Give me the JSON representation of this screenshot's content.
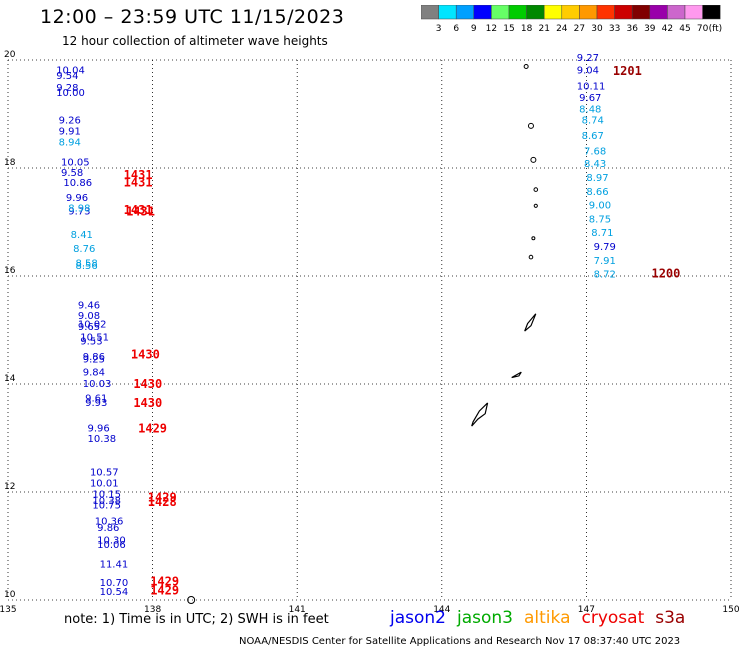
{
  "header": {
    "title": "12:00 – 23:59 UTC 11/15/2023",
    "subtitle": "12 hour collection of altimeter wave heights"
  },
  "colorbar": {
    "labels": [
      "3",
      "6",
      "9",
      "12",
      "15",
      "18",
      "21",
      "24",
      "27",
      "30",
      "33",
      "36",
      "39",
      "42",
      "45",
      "70"
    ],
    "unit": "(ft)",
    "colors": [
      "#808080",
      "#00e5ff",
      "#00a0ff",
      "#0000ff",
      "#66ff66",
      "#00cc00",
      "#008800",
      "#ffff00",
      "#ffcc00",
      "#ff9900",
      "#ff3300",
      "#cc0000",
      "#800000",
      "#9900aa",
      "#cc66cc",
      "#ff99ee",
      "#000000"
    ]
  },
  "footer": {
    "note": "note:  1) Time is in UTC;  2) SWH is in feet",
    "credit": "NOAA/NESDIS Center for Satellite Applications and Research    Nov 17 08:37:40 UTC 2023",
    "legend": [
      {
        "name": "jason2",
        "color": "#0000ee"
      },
      {
        "name": "jason3",
        "color": "#00aa00"
      },
      {
        "name": "altika",
        "color": "#ff9900"
      },
      {
        "name": "cryosat",
        "color": "#ee0000"
      },
      {
        "name": "s3a",
        "color": "#990000"
      }
    ]
  },
  "chart_data": {
    "type": "scatter",
    "title": "12:00 – 23:59 UTC 11/15/2023",
    "subtitle": "12 hour collection of altimeter wave heights",
    "xlim": [
      135,
      150
    ],
    "ylim": [
      10,
      20
    ],
    "x_ticks": [
      "135",
      "138",
      "141",
      "144",
      "147",
      "150"
    ],
    "y_ticks": [
      "10",
      "12",
      "14",
      "16",
      "18",
      "20"
    ],
    "grid": true,
    "colors": {
      "dark_blue": "#0000cc",
      "light_blue": "#00a0e0",
      "time_red": "#ee0000",
      "time_darkred": "#990000"
    },
    "points": [
      {
        "lon": 136.0,
        "lat": 19.75,
        "v": "10.04",
        "c": "#0000cc"
      },
      {
        "lon": 136.0,
        "lat": 19.65,
        "v": "9.54",
        "c": "#0000cc"
      },
      {
        "lon": 136.0,
        "lat": 19.43,
        "v": "9.28",
        "c": "#0000cc"
      },
      {
        "lon": 136.0,
        "lat": 19.33,
        "v": "10.00",
        "c": "#0000cc"
      },
      {
        "lon": 136.05,
        "lat": 18.82,
        "v": "9.26",
        "c": "#0000cc"
      },
      {
        "lon": 136.05,
        "lat": 18.62,
        "v": "9.91",
        "c": "#0000cc"
      },
      {
        "lon": 136.05,
        "lat": 18.42,
        "v": "8.94",
        "c": "#00a0e0"
      },
      {
        "lon": 136.1,
        "lat": 18.05,
        "v": "10.05",
        "c": "#0000cc"
      },
      {
        "lon": 136.1,
        "lat": 17.85,
        "v": "9.58",
        "c": "#0000cc"
      },
      {
        "lon": 136.15,
        "lat": 17.67,
        "v": "10.86",
        "c": "#0000cc"
      },
      {
        "lon": 136.2,
        "lat": 17.39,
        "v": "9.96",
        "c": "#0000cc"
      },
      {
        "lon": 136.25,
        "lat": 17.14,
        "v": "9.73",
        "c": "#0000cc"
      },
      {
        "lon": 136.25,
        "lat": 17.19,
        "v": "8.98",
        "c": "#00a0e0"
      },
      {
        "lon": 136.3,
        "lat": 16.7,
        "v": "8.41",
        "c": "#00a0e0"
      },
      {
        "lon": 136.35,
        "lat": 16.44,
        "v": "8.76",
        "c": "#00a0e0"
      },
      {
        "lon": 136.4,
        "lat": 16.18,
        "v": "8.58",
        "c": "#00a0e0"
      },
      {
        "lon": 136.4,
        "lat": 16.13,
        "v": "8.56",
        "c": "#00a0e0"
      },
      {
        "lon": 136.45,
        "lat": 15.4,
        "v": "9.46",
        "c": "#0000cc"
      },
      {
        "lon": 136.45,
        "lat": 15.2,
        "v": "9.08",
        "c": "#0000cc"
      },
      {
        "lon": 136.45,
        "lat": 15.05,
        "v": "10.02",
        "c": "#0000cc"
      },
      {
        "lon": 136.45,
        "lat": 15.0,
        "v": "9.65",
        "c": "#0000cc"
      },
      {
        "lon": 136.5,
        "lat": 14.81,
        "v": "10.51",
        "c": "#0000cc"
      },
      {
        "lon": 136.5,
        "lat": 14.73,
        "v": "9.53",
        "c": "#0000cc"
      },
      {
        "lon": 136.55,
        "lat": 14.44,
        "v": "9.86",
        "c": "#0000cc"
      },
      {
        "lon": 136.55,
        "lat": 14.4,
        "v": "9.25",
        "c": "#0000cc"
      },
      {
        "lon": 136.55,
        "lat": 14.16,
        "v": "9.84",
        "c": "#0000cc"
      },
      {
        "lon": 136.55,
        "lat": 13.94,
        "v": "10.03",
        "c": "#0000cc"
      },
      {
        "lon": 136.6,
        "lat": 13.68,
        "v": "9.61",
        "c": "#0000cc"
      },
      {
        "lon": 136.6,
        "lat": 13.59,
        "v": "9.93",
        "c": "#0000cc"
      },
      {
        "lon": 136.65,
        "lat": 13.12,
        "v": "9.96",
        "c": "#0000cc"
      },
      {
        "lon": 136.65,
        "lat": 12.93,
        "v": "10.38",
        "c": "#0000cc"
      },
      {
        "lon": 136.7,
        "lat": 12.31,
        "v": "10.57",
        "c": "#0000cc"
      },
      {
        "lon": 136.7,
        "lat": 12.1,
        "v": "10.01",
        "c": "#0000cc"
      },
      {
        "lon": 136.75,
        "lat": 11.9,
        "v": "10.15",
        "c": "#0000cc"
      },
      {
        "lon": 136.75,
        "lat": 11.78,
        "v": "10.38",
        "c": "#0000cc"
      },
      {
        "lon": 136.75,
        "lat": 11.69,
        "v": "10.75",
        "c": "#0000cc"
      },
      {
        "lon": 136.8,
        "lat": 11.4,
        "v": "10.36",
        "c": "#0000cc"
      },
      {
        "lon": 136.85,
        "lat": 11.28,
        "v": "9.86",
        "c": "#0000cc"
      },
      {
        "lon": 136.85,
        "lat": 11.05,
        "v": "10.30",
        "c": "#0000cc"
      },
      {
        "lon": 136.85,
        "lat": 10.96,
        "v": "10.06",
        "c": "#0000cc"
      },
      {
        "lon": 136.9,
        "lat": 10.6,
        "v": "11.41",
        "c": "#0000cc"
      },
      {
        "lon": 136.9,
        "lat": 10.26,
        "v": "10.70",
        "c": "#0000cc"
      },
      {
        "lon": 136.9,
        "lat": 10.09,
        "v": "10.54",
        "c": "#0000cc"
      },
      {
        "lon": 146.8,
        "lat": 19.98,
        "v": "9.27",
        "c": "#0000cc"
      },
      {
        "lon": 146.8,
        "lat": 19.75,
        "v": "9.04",
        "c": "#0000cc"
      },
      {
        "lon": 146.8,
        "lat": 19.45,
        "v": "10.11",
        "c": "#0000cc"
      },
      {
        "lon": 146.85,
        "lat": 19.24,
        "v": "9.67",
        "c": "#0000cc"
      },
      {
        "lon": 146.85,
        "lat": 19.03,
        "v": "8.48",
        "c": "#00a0e0"
      },
      {
        "lon": 146.9,
        "lat": 18.82,
        "v": "8.74",
        "c": "#00a0e0"
      },
      {
        "lon": 146.9,
        "lat": 18.54,
        "v": "8.67",
        "c": "#00a0e0"
      },
      {
        "lon": 146.95,
        "lat": 18.25,
        "v": "7.68",
        "c": "#00a0e0"
      },
      {
        "lon": 146.95,
        "lat": 18.02,
        "v": "8.43",
        "c": "#00a0e0"
      },
      {
        "lon": 147.0,
        "lat": 17.76,
        "v": "8.97",
        "c": "#00a0e0"
      },
      {
        "lon": 147.0,
        "lat": 17.5,
        "v": "8.66",
        "c": "#00a0e0"
      },
      {
        "lon": 147.05,
        "lat": 17.25,
        "v": "9.00",
        "c": "#00a0e0"
      },
      {
        "lon": 147.05,
        "lat": 16.99,
        "v": "8.75",
        "c": "#00a0e0"
      },
      {
        "lon": 147.1,
        "lat": 16.74,
        "v": "8.71",
        "c": "#00a0e0"
      },
      {
        "lon": 147.15,
        "lat": 16.48,
        "v": "9.79",
        "c": "#0000cc"
      },
      {
        "lon": 147.15,
        "lat": 16.22,
        "v": "7.91",
        "c": "#00a0e0"
      },
      {
        "lon": 147.15,
        "lat": 15.97,
        "v": "8.72",
        "c": "#00a0e0"
      }
    ],
    "time_labels": [
      {
        "lon": 137.4,
        "lat": 17.8,
        "t": "1431",
        "c": "#ee0000"
      },
      {
        "lon": 137.4,
        "lat": 17.66,
        "t": "1431",
        "c": "#ee0000"
      },
      {
        "lon": 137.4,
        "lat": 17.15,
        "t": "1431",
        "c": "#ee0000"
      },
      {
        "lon": 137.45,
        "lat": 17.12,
        "t": "1431",
        "c": "#ee0000"
      },
      {
        "lon": 137.55,
        "lat": 14.47,
        "t": "1430",
        "c": "#ee0000"
      },
      {
        "lon": 137.6,
        "lat": 13.93,
        "t": "1430",
        "c": "#ee0000"
      },
      {
        "lon": 137.6,
        "lat": 13.57,
        "t": "1430",
        "c": "#ee0000"
      },
      {
        "lon": 137.7,
        "lat": 13.1,
        "t": "1429",
        "c": "#ee0000"
      },
      {
        "lon": 137.9,
        "lat": 11.82,
        "t": "1429",
        "c": "#ee0000"
      },
      {
        "lon": 137.9,
        "lat": 11.74,
        "t": "1428",
        "c": "#ee0000"
      },
      {
        "lon": 137.95,
        "lat": 10.27,
        "t": "1429",
        "c": "#ee0000"
      },
      {
        "lon": 137.95,
        "lat": 10.1,
        "t": "1429",
        "c": "#ee0000"
      },
      {
        "lon": 147.55,
        "lat": 19.72,
        "t": "1201",
        "c": "#990000"
      },
      {
        "lon": 148.35,
        "lat": 15.97,
        "t": "1200",
        "c": "#990000"
      }
    ]
  }
}
